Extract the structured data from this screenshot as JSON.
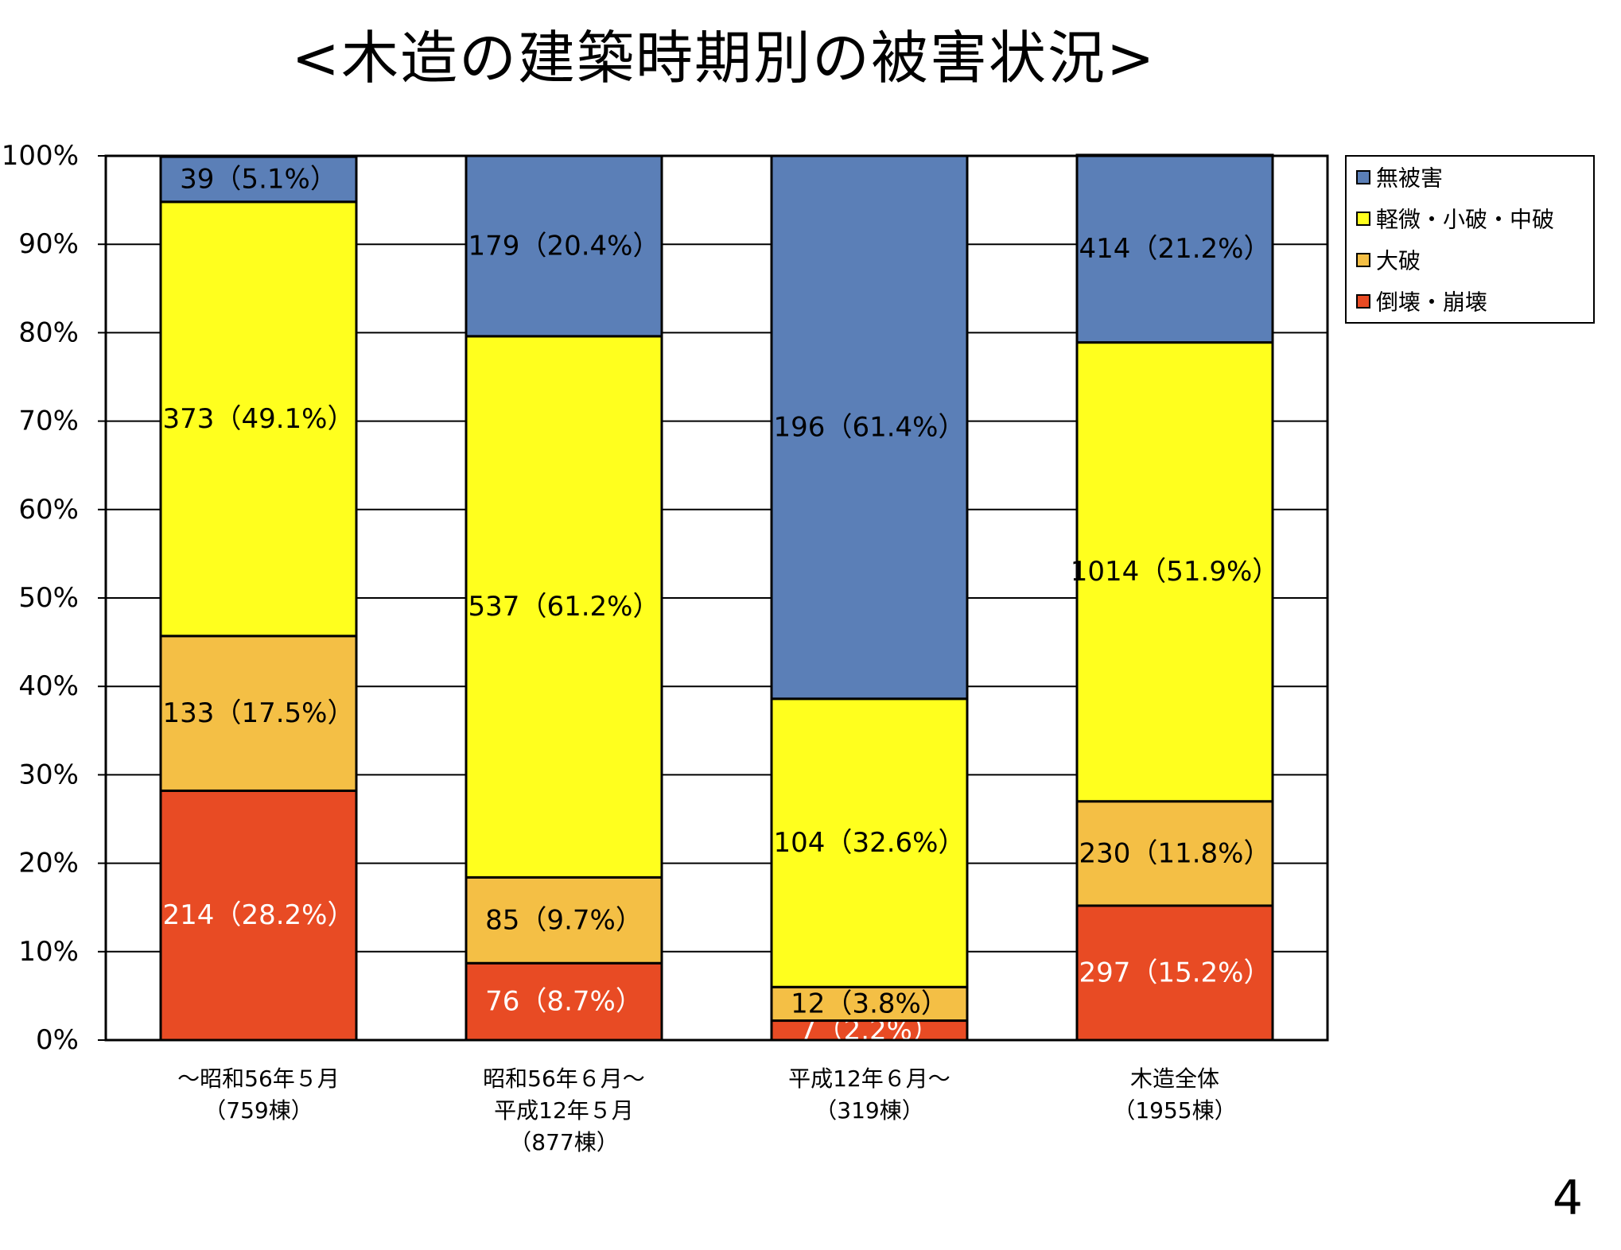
{
  "page": {
    "title": "<木造の建築時期別の被害状況>",
    "page_number": "4"
  },
  "chart_data": {
    "type": "bar",
    "stacked": true,
    "percent_scale": true,
    "title": "<木造の建築時期別の被害状況>",
    "ylim": [
      0,
      100
    ],
    "y_ticks": [
      "0%",
      "10%",
      "20%",
      "30%",
      "40%",
      "50%",
      "60%",
      "70%",
      "80%",
      "90%",
      "100%"
    ],
    "grid": true,
    "legend_position": "top-right",
    "categories": [
      [
        "～昭和56年５月",
        "（759棟）"
      ],
      [
        "昭和56年６月～",
        "平成12年５月",
        "（877棟）"
      ],
      [
        "平成12年６月～",
        "（319棟）"
      ],
      [
        "木造全体",
        "（1955棟）"
      ]
    ],
    "series": [
      {
        "name": "倒壊・崩壊",
        "color": "#E84B24",
        "values": [
          28.2,
          8.7,
          2.2,
          15.2
        ],
        "labels": [
          "214（28.2%）",
          "76（8.7%）",
          "7（2.2%）",
          "297（15.2%）"
        ],
        "label_colors": [
          "#ffffff",
          "#ffffff",
          "#ffffff",
          "#ffffff"
        ]
      },
      {
        "name": "大破",
        "color": "#F4BF45",
        "values": [
          17.5,
          9.7,
          3.8,
          11.8
        ],
        "labels": [
          "133（17.5%）",
          "85（9.7%）",
          "12（3.8%）",
          "230（11.8%）"
        ],
        "label_colors": [
          "#000000",
          "#000000",
          "#000000",
          "#000000"
        ]
      },
      {
        "name": "軽微・小破・中破",
        "color": "#FFFF1E",
        "values": [
          49.1,
          61.2,
          32.6,
          51.9
        ],
        "labels": [
          "373（49.1%）",
          "537（61.2%）",
          "104（32.6%）",
          "1014（51.9%）"
        ],
        "label_colors": [
          "#000000",
          "#000000",
          "#000000",
          "#000000"
        ]
      },
      {
        "name": "無被害",
        "color": "#5B7FB7",
        "values": [
          5.1,
          20.4,
          61.4,
          21.2
        ],
        "labels": [
          "39（5.1%）",
          "179（20.4%）",
          "196（61.4%）",
          "414（21.2%）"
        ],
        "label_colors": [
          "#000000",
          "#000000",
          "#000000",
          "#000000"
        ]
      }
    ],
    "legend_order": [
      "無被害",
      "軽微・小破・中破",
      "大破",
      "倒壊・崩壊"
    ]
  }
}
